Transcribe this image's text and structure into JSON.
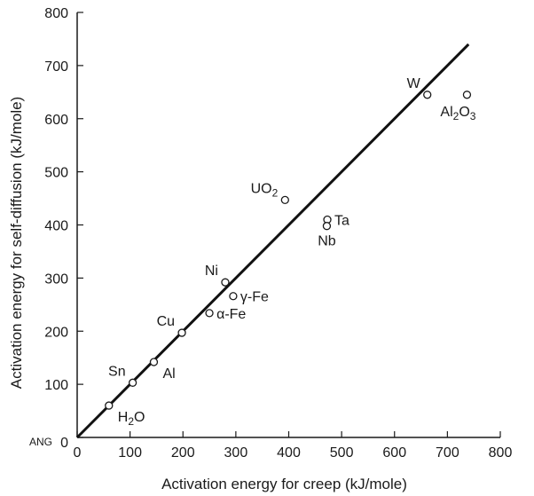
{
  "corner_label": "ANG",
  "chart_data": {
    "type": "scatter",
    "title": "",
    "xlabel": "Activation energy for creep (kJ/mole)",
    "ylabel": "Activation energy for self-diffusion (kJ/mole)",
    "xlim": [
      0,
      800
    ],
    "ylim": [
      0,
      800
    ],
    "xticks": [
      "0",
      "100",
      "200",
      "300",
      "400",
      "500",
      "600",
      "700",
      "800"
    ],
    "yticks": [
      "0",
      "100",
      "200",
      "300",
      "400",
      "500",
      "600",
      "700",
      "800"
    ],
    "grid": false,
    "fit_line": {
      "x": [
        0,
        740
      ],
      "y": [
        0,
        740
      ]
    },
    "points": [
      {
        "label": "H2O",
        "label_parts": [
          {
            "t": "H"
          },
          {
            "t": "2",
            "sub": true
          },
          {
            "t": "O"
          }
        ],
        "x": 60,
        "y": 60,
        "label_side": "right-below"
      },
      {
        "label": "Sn",
        "label_parts": [
          {
            "t": "Sn"
          }
        ],
        "x": 105,
        "y": 103,
        "label_side": "left-above"
      },
      {
        "label": "Al",
        "label_parts": [
          {
            "t": "Al"
          }
        ],
        "x": 145,
        "y": 142,
        "label_side": "right-below"
      },
      {
        "label": "Cu",
        "label_parts": [
          {
            "t": "Cu"
          }
        ],
        "x": 198,
        "y": 197,
        "label_side": "left-above"
      },
      {
        "label": "α-Fe",
        "label_parts": [
          {
            "t": "α-Fe"
          }
        ],
        "x": 250,
        "y": 234,
        "label_side": "right"
      },
      {
        "label": "γ-Fe",
        "label_parts": [
          {
            "t": "γ-Fe"
          }
        ],
        "x": 295,
        "y": 266,
        "label_side": "right"
      },
      {
        "label": "Ni",
        "label_parts": [
          {
            "t": "Ni"
          }
        ],
        "x": 280,
        "y": 292,
        "label_side": "left-above"
      },
      {
        "label": "UO2",
        "label_parts": [
          {
            "t": "UO"
          },
          {
            "t": "2",
            "sub": true
          }
        ],
        "x": 393,
        "y": 447,
        "label_side": "left-above"
      },
      {
        "label": "Ta",
        "label_parts": [
          {
            "t": "Ta"
          }
        ],
        "x": 473,
        "y": 410,
        "label_side": "right"
      },
      {
        "label": "Nb",
        "label_parts": [
          {
            "t": "Nb"
          }
        ],
        "x": 472,
        "y": 398,
        "label_side": "below"
      },
      {
        "label": "W",
        "label_parts": [
          {
            "t": "W"
          }
        ],
        "x": 662,
        "y": 645,
        "label_side": "left-above"
      },
      {
        "label": "Al2O3",
        "label_parts": [
          {
            "t": "Al"
          },
          {
            "t": "2",
            "sub": true
          },
          {
            "t": "O"
          },
          {
            "t": "3",
            "sub": true
          }
        ],
        "x": 737,
        "y": 645,
        "label_side": "below-left"
      }
    ]
  }
}
